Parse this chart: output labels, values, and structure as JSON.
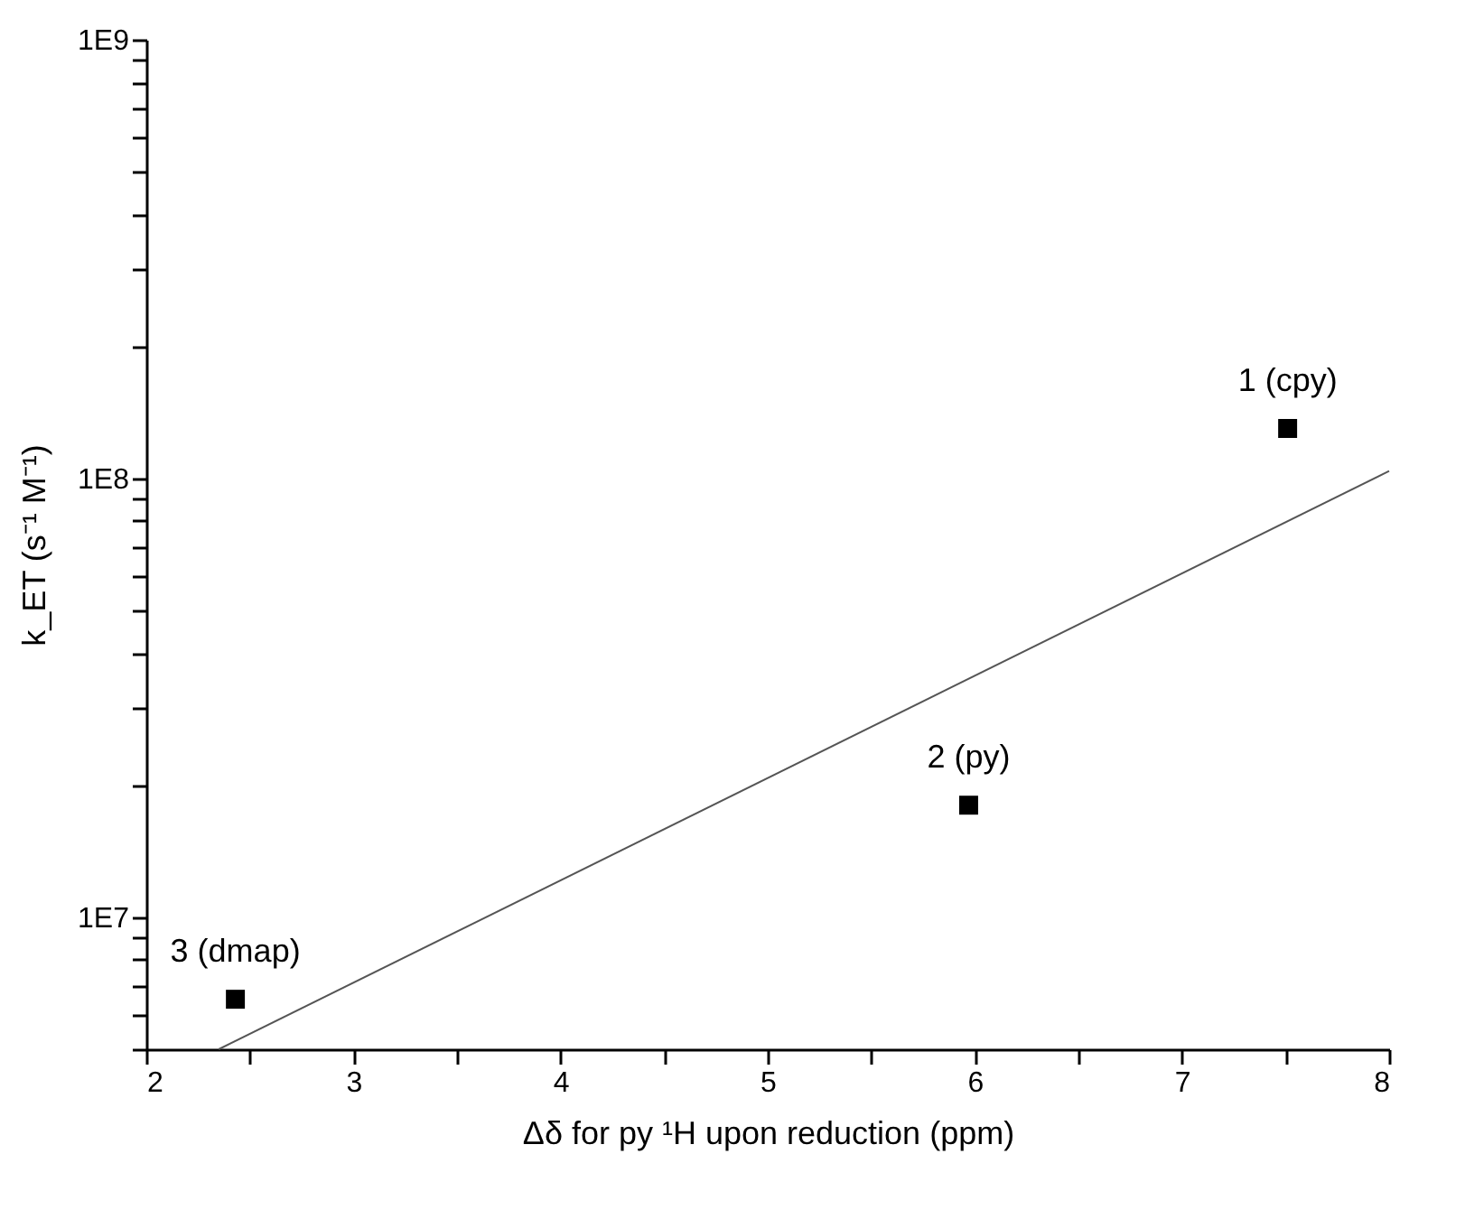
{
  "chart_data": {
    "type": "scatter",
    "xlabel": "Δδ for py ¹H upon reduction (ppm)",
    "ylabel": "k_ET (s⁻¹ M⁻¹)",
    "log": "y",
    "xlim": [
      2,
      8
    ],
    "ylim": [
      5000000,
      1000000000
    ],
    "xticks": [
      2,
      {
        "value": 2.5,
        "label": null
      },
      3,
      {
        "value": 3.5,
        "label": null
      },
      4,
      {
        "value": 4.5,
        "label": null
      },
      5,
      {
        "value": 5.5,
        "label": null
      },
      6,
      {
        "value": 6.5,
        "label": null
      },
      7,
      {
        "value": 7.5,
        "label": null
      },
      8
    ],
    "yticks": [
      {
        "value": 5000000,
        "label": null
      },
      {
        "value": 6000000,
        "label": null
      },
      {
        "value": 7000000,
        "label": null
      },
      {
        "value": 8000000,
        "label": null
      },
      {
        "value": 9000000,
        "label": null
      },
      {
        "value": 10000000,
        "label": "1E7"
      },
      {
        "value": 20000000,
        "label": null
      },
      {
        "value": 30000000,
        "label": null
      },
      {
        "value": 40000000,
        "label": null
      },
      {
        "value": 50000000,
        "label": null
      },
      {
        "value": 60000000,
        "label": null
      },
      {
        "value": 70000000,
        "label": null
      },
      {
        "value": 80000000,
        "label": null
      },
      {
        "value": 90000000,
        "label": null
      },
      {
        "value": 100000000,
        "label": "1E8"
      },
      {
        "value": 200000000,
        "label": null
      },
      {
        "value": 300000000,
        "label": null
      },
      {
        "value": 400000000,
        "label": null
      },
      {
        "value": 500000000,
        "label": null
      },
      {
        "value": 600000000,
        "label": null
      },
      {
        "value": 700000000,
        "label": null
      },
      {
        "value": 800000000,
        "label": null
      },
      {
        "value": 900000000,
        "label": null
      },
      {
        "value": 1000000000,
        "label": "1E9"
      }
    ],
    "grid": false,
    "series": [
      {
        "color": "#000000",
        "marker": "square",
        "x": [
          2.43,
          5.97,
          7.51
        ],
        "values": [
          6500000,
          18000000,
          130000000
        ]
      },
      {
        "type": "line",
        "color": "#555555",
        "marker": "none",
        "line_style": "solid",
        "x": [
          2.35,
          8
        ],
        "values": [
          5000000,
          104000000
        ]
      }
    ],
    "annotations": [
      {
        "text": "3 (dmap)",
        "x": 2.43,
        "y": 6500000
      },
      {
        "text": "2 (py)",
        "x": 5.97,
        "y": 18000000
      },
      {
        "text": "1 (cpy)",
        "x": 7.51,
        "y": 130000000
      }
    ]
  }
}
